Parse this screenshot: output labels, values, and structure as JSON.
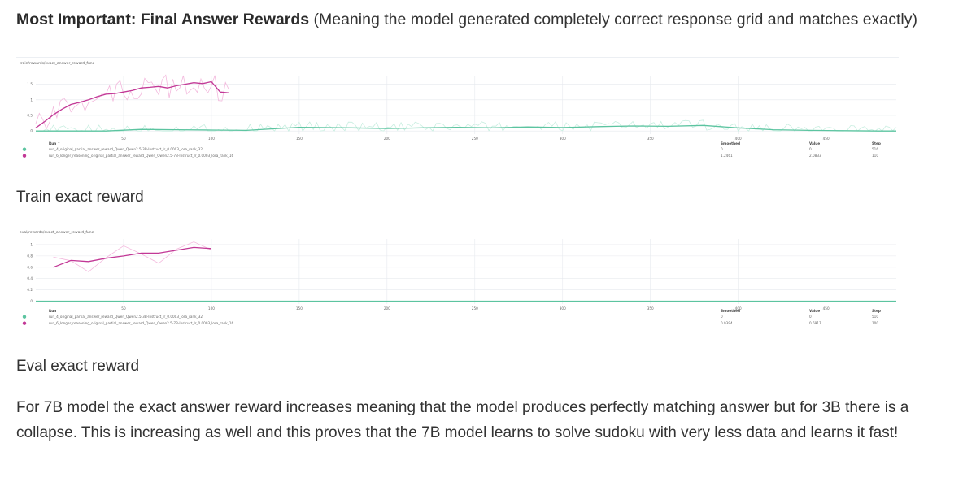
{
  "heading": {
    "bold": "Most Important: Final Answer Rewards",
    "rest": " (Meaning the model generated completely correct response grid and matches exactly)"
  },
  "captions": {
    "train": "Train exact reward",
    "eval": "Eval exact reward"
  },
  "paragraph": "For 7B model the exact answer reward increases meaning that the model produces perfectly matching answer but for 3B there is a collapse. This is increasing as well and this proves that the 7B model learns to solve sudoku with very less data and learns it fast!",
  "colors": {
    "green": "#5cc4a0",
    "green_light": "#c8eee0",
    "pink": "#c23896",
    "pink_light": "#f3b9dd",
    "grid": "#e6e9ee"
  },
  "chart_data": [
    {
      "type": "line",
      "title": "train/rewards/exact_answer_reward_func",
      "x_ticks": [
        "50",
        "100",
        "150",
        "200",
        "250",
        "300",
        "350",
        "400",
        "450"
      ],
      "y_ticks": [
        "0",
        "0.5",
        "1",
        "1.5"
      ],
      "xlim": [
        0,
        490
      ],
      "ylim": [
        -0.1,
        1.75
      ],
      "legend_header": {
        "run": "Run ↑",
        "smoothed": "Smoothed",
        "value": "Value",
        "step": "Step"
      },
      "series": [
        {
          "name": "run_4_original_partial_answer_reward_Qwen_Qwen2.5-3B-Instruct_lr_0.0003_lora_rank_32",
          "color": "#5cc4a0",
          "smoothed_value": "0",
          "value": "0",
          "step": "516",
          "x": [
            0,
            40,
            60,
            80,
            100,
            120,
            150,
            180,
            200,
            220,
            240,
            260,
            280,
            300,
            320,
            340,
            360,
            380,
            400,
            420,
            440,
            460,
            480,
            490
          ],
          "y": [
            0,
            0.0,
            0.05,
            0.04,
            0.03,
            0.02,
            0.12,
            0.1,
            0.08,
            0.1,
            0.12,
            0.1,
            0.13,
            0.11,
            0.14,
            0.16,
            0.15,
            0.18,
            0.1,
            0.04,
            0.02,
            0.01,
            0.0,
            0.0
          ]
        },
        {
          "name": "run_6_longer_reasoning_original_partial_answer_reward_Qwen_Qwen2.5-7B-Instruct_lr_0.0003_lora_rank_16",
          "color": "#c23896",
          "smoothed_value": "1.2461",
          "value": "2.0833",
          "step": "110",
          "x": [
            0,
            5,
            10,
            15,
            20,
            25,
            30,
            35,
            40,
            45,
            50,
            55,
            60,
            65,
            70,
            75,
            80,
            85,
            90,
            95,
            100,
            105,
            110
          ],
          "y": [
            0.1,
            0.3,
            0.52,
            0.7,
            0.85,
            0.92,
            1.0,
            1.1,
            1.18,
            1.2,
            1.25,
            1.3,
            1.38,
            1.4,
            1.43,
            1.38,
            1.45,
            1.5,
            1.55,
            1.52,
            1.58,
            1.25,
            1.22
          ]
        }
      ]
    },
    {
      "type": "line",
      "title": "eval/rewards/exact_answer_reward_func",
      "x_ticks": [
        "50",
        "100",
        "150",
        "200",
        "250",
        "300",
        "350",
        "400",
        "450"
      ],
      "y_ticks": [
        "0",
        "0.2",
        "0.4",
        "0.6",
        "0.8",
        "1"
      ],
      "xlim": [
        0,
        490
      ],
      "ylim": [
        -0.05,
        1.1
      ],
      "legend_header": {
        "run": "Run ↑",
        "smoothed": "Smoothed",
        "value": "Value",
        "step": "Step"
      },
      "series": [
        {
          "name": "run_4_original_partial_answer_reward_Qwen_Qwen2.5-3B-Instruct_lr_0.0003_lora_rank_32",
          "color": "#5cc4a0",
          "smoothed_value": "0",
          "value": "0",
          "step": "510",
          "x": [
            0,
            490
          ],
          "y": [
            0,
            0
          ]
        },
        {
          "name": "run_6_longer_reasoning_original_partial_answer_reward_Qwen_Qwen2.5-7B-Instruct_lr_0.0003_lora_rank_16",
          "color": "#c23896",
          "smoothed_value": "0.9394",
          "value": "0.6917",
          "step": "100",
          "x": [
            10,
            20,
            30,
            40,
            50,
            60,
            70,
            80,
            90,
            100
          ],
          "y": [
            0.6,
            0.72,
            0.7,
            0.76,
            0.8,
            0.85,
            0.85,
            0.9,
            0.95,
            0.93
          ]
        }
      ]
    }
  ]
}
